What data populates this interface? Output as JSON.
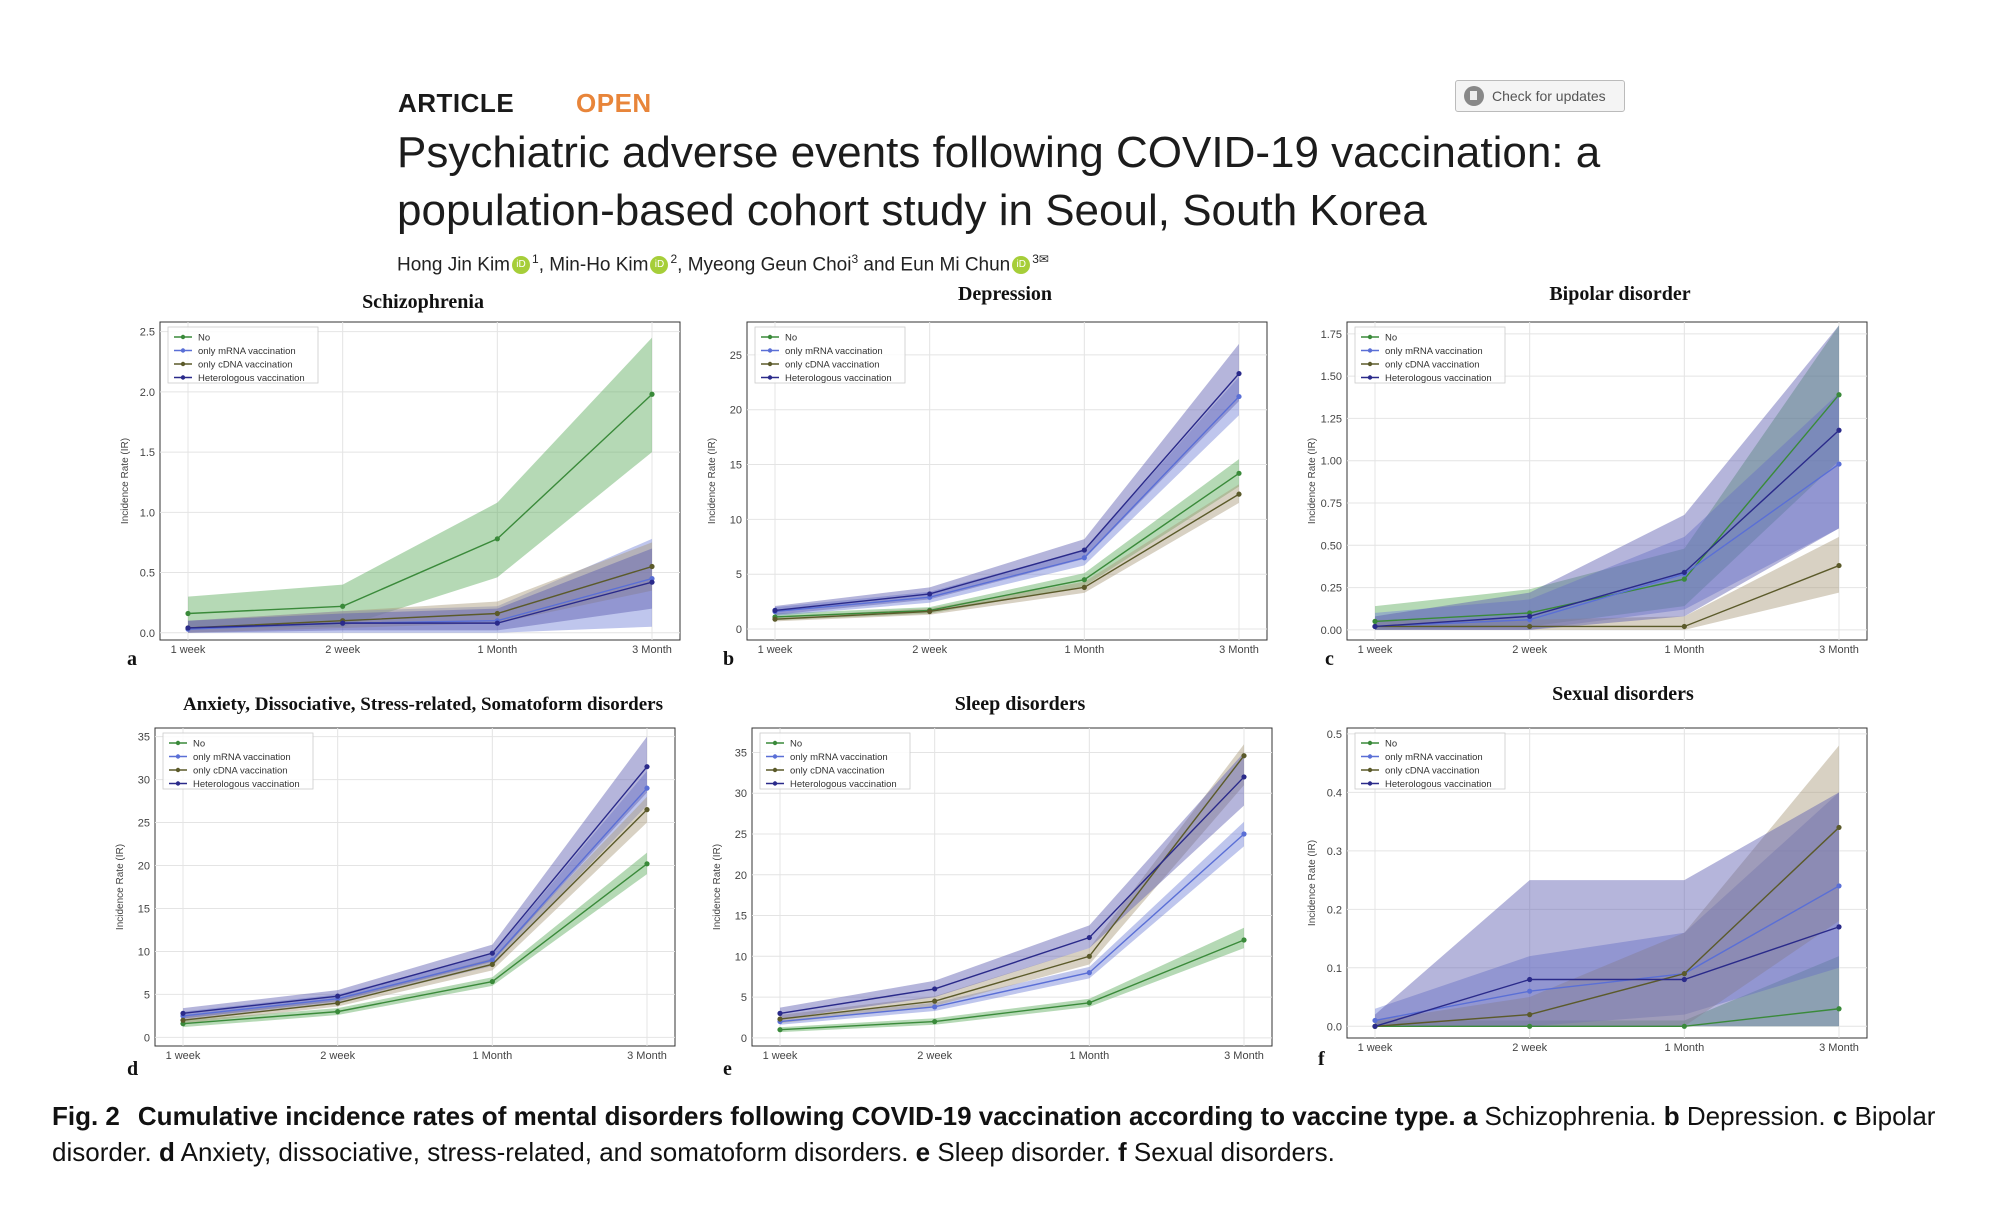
{
  "header": {
    "article_label": "ARTICLE",
    "open_label": "OPEN",
    "check_updates": "Check for updates",
    "title": "Psychiatric adverse events following COVID-19 vaccination: a population-based cohort study in Seoul, South Korea",
    "authors": [
      {
        "name": "Hong Jin Kim",
        "sup": "1",
        "orcid": true,
        "sep": ", "
      },
      {
        "name": "Min-Ho Kim",
        "sup": "2",
        "orcid": true,
        "sep": ", "
      },
      {
        "name": "Myeong Geun Choi",
        "sup": "3",
        "orcid": false,
        "sep": " and "
      },
      {
        "name": "Eun Mi Chun",
        "sup": "3✉",
        "orcid": true,
        "sep": ""
      }
    ]
  },
  "colors": {
    "No": "#3a8a3a",
    "only mRNA vaccination": "#5a6fd6",
    "only cDNA vaccination": "#5b5a2a",
    "Heterologous vaccination": "#2a2a8a",
    "band_No": "#5aaa5a",
    "band_mRNA": "#7080d8",
    "band_cDNA": "#a89a7a",
    "band_Het": "#5a5ab0"
  },
  "chart_data": [
    {
      "type": "line",
      "panel": "a",
      "title": "Schizophrenia",
      "ylabel": "Incidence Rate (IR)",
      "x": [
        "1 week",
        "2 week",
        "1 Month",
        "3 Month"
      ],
      "ylim": [
        -0.06,
        2.58
      ],
      "yticks": [
        0.0,
        0.5,
        1.0,
        1.5,
        2.0,
        2.5
      ],
      "series": [
        {
          "name": "No",
          "values": [
            0.16,
            0.22,
            0.78,
            1.98
          ],
          "lower": [
            0.04,
            0.05,
            0.46,
            1.5
          ],
          "upper": [
            0.3,
            0.4,
            1.08,
            2.45
          ]
        },
        {
          "name": "only mRNA vaccination",
          "values": [
            0.03,
            0.08,
            0.1,
            0.45
          ],
          "lower": [
            0.0,
            0.0,
            0.0,
            0.05
          ],
          "upper": [
            0.1,
            0.18,
            0.22,
            0.78
          ]
        },
        {
          "name": "only cDNA vaccination",
          "values": [
            0.04,
            0.1,
            0.16,
            0.55
          ],
          "lower": [
            0.0,
            0.04,
            0.08,
            0.35
          ],
          "upper": [
            0.1,
            0.18,
            0.26,
            0.75
          ]
        },
        {
          "name": "Heterologous vaccination",
          "values": [
            0.04,
            0.08,
            0.08,
            0.42
          ],
          "lower": [
            0.0,
            0.02,
            0.02,
            0.2
          ],
          "upper": [
            0.1,
            0.16,
            0.2,
            0.7
          ]
        }
      ]
    },
    {
      "type": "line",
      "panel": "b",
      "title": "Depression",
      "ylabel": "Incidence Rate (IR)",
      "x": [
        "1 week",
        "2 week",
        "1 Month",
        "3 Month"
      ],
      "ylim": [
        -1.0,
        28.0
      ],
      "yticks": [
        0,
        5,
        10,
        15,
        20,
        25
      ],
      "series": [
        {
          "name": "No",
          "values": [
            1.1,
            1.7,
            4.5,
            14.2
          ],
          "lower": [
            0.8,
            1.4,
            3.9,
            13.0
          ],
          "upper": [
            1.4,
            2.0,
            5.1,
            15.5
          ]
        },
        {
          "name": "only mRNA vaccination",
          "values": [
            1.6,
            2.9,
            6.5,
            21.2
          ],
          "lower": [
            1.2,
            2.4,
            5.8,
            19.5
          ],
          "upper": [
            2.0,
            3.4,
            7.2,
            23.0
          ]
        },
        {
          "name": "only cDNA vaccination",
          "values": [
            0.9,
            1.6,
            3.8,
            12.3
          ],
          "lower": [
            0.7,
            1.3,
            3.3,
            11.5
          ],
          "upper": [
            1.1,
            1.9,
            4.3,
            13.2
          ]
        },
        {
          "name": "Heterologous vaccination",
          "values": [
            1.7,
            3.2,
            7.2,
            23.3
          ],
          "lower": [
            1.3,
            2.7,
            6.4,
            20.8
          ],
          "upper": [
            2.1,
            3.8,
            8.2,
            26.0
          ]
        }
      ]
    },
    {
      "type": "line",
      "panel": "c",
      "title": "Bipolar disorder",
      "ylabel": "Incidence Rate (IR)",
      "x": [
        "1 week",
        "2 week",
        "1 Month",
        "3 Month"
      ],
      "ylim": [
        -0.06,
        1.82
      ],
      "yticks": [
        0.0,
        0.25,
        0.5,
        0.75,
        1.0,
        1.25,
        1.5,
        1.75
      ],
      "series": [
        {
          "name": "No",
          "values": [
            0.05,
            0.1,
            0.3,
            1.39
          ],
          "lower": [
            0.0,
            0.02,
            0.14,
            1.0
          ],
          "upper": [
            0.14,
            0.24,
            0.48,
            1.8
          ]
        },
        {
          "name": "only mRNA vaccination",
          "values": [
            0.02,
            0.06,
            0.33,
            0.98
          ],
          "lower": [
            0.0,
            0.0,
            0.12,
            0.6
          ],
          "upper": [
            0.1,
            0.18,
            0.55,
            1.4
          ]
        },
        {
          "name": "only cDNA vaccination",
          "values": [
            0.02,
            0.02,
            0.02,
            0.38
          ],
          "lower": [
            0.0,
            0.0,
            0.0,
            0.22
          ],
          "upper": [
            0.06,
            0.06,
            0.08,
            0.55
          ]
        },
        {
          "name": "Heterologous vaccination",
          "values": [
            0.02,
            0.08,
            0.34,
            1.18
          ],
          "lower": [
            0.0,
            0.0,
            0.08,
            0.6
          ],
          "upper": [
            0.08,
            0.22,
            0.68,
            1.8
          ]
        }
      ]
    },
    {
      "type": "line",
      "panel": "d",
      "title": "Anxiety, Dissociative, Stress-related, Somatoform disorders",
      "ylabel": "Incidence Rate (IR)",
      "x": [
        "1 week",
        "2 week",
        "1 Month",
        "3 Month"
      ],
      "ylim": [
        -1.0,
        36.0
      ],
      "yticks": [
        0,
        5,
        10,
        15,
        20,
        25,
        30,
        35
      ],
      "series": [
        {
          "name": "No",
          "values": [
            1.6,
            3.0,
            6.5,
            20.2
          ],
          "lower": [
            1.2,
            2.6,
            6.0,
            19.0
          ],
          "upper": [
            2.0,
            3.4,
            7.0,
            21.5
          ]
        },
        {
          "name": "only mRNA vaccination",
          "values": [
            2.5,
            4.5,
            9.0,
            29.0
          ],
          "lower": [
            2.0,
            4.0,
            8.3,
            27.0
          ],
          "upper": [
            3.0,
            5.0,
            9.7,
            31.0
          ]
        },
        {
          "name": "only cDNA vaccination",
          "values": [
            2.0,
            4.0,
            8.5,
            26.5
          ],
          "lower": [
            1.6,
            3.6,
            7.8,
            25.0
          ],
          "upper": [
            2.4,
            4.4,
            9.2,
            28.0
          ]
        },
        {
          "name": "Heterologous vaccination",
          "values": [
            2.8,
            4.8,
            9.8,
            31.5
          ],
          "lower": [
            2.2,
            4.2,
            8.8,
            28.5
          ],
          "upper": [
            3.4,
            5.5,
            10.8,
            35.0
          ]
        }
      ]
    },
    {
      "type": "line",
      "panel": "e",
      "title": "Sleep disorders",
      "ylabel": "Incidence Rate (IR)",
      "x": [
        "1 week",
        "2 week",
        "1 Month",
        "3 Month"
      ],
      "ylim": [
        -1.0,
        38.0
      ],
      "yticks": [
        0,
        5,
        10,
        15,
        20,
        25,
        30,
        35
      ],
      "series": [
        {
          "name": "No",
          "values": [
            1.0,
            2.0,
            4.3,
            12.0
          ],
          "lower": [
            0.7,
            1.6,
            3.8,
            11.0
          ],
          "upper": [
            1.3,
            2.4,
            4.8,
            13.5
          ]
        },
        {
          "name": "only mRNA vaccination",
          "values": [
            2.0,
            3.8,
            8.0,
            25.0
          ],
          "lower": [
            1.6,
            3.3,
            7.3,
            23.5
          ],
          "upper": [
            2.4,
            4.3,
            8.7,
            26.5
          ]
        },
        {
          "name": "only cDNA vaccination",
          "values": [
            2.3,
            4.5,
            10.0,
            34.6
          ],
          "lower": [
            1.8,
            3.9,
            9.0,
            31.0
          ],
          "upper": [
            2.8,
            5.1,
            11.0,
            36.0
          ]
        },
        {
          "name": "Heterologous vaccination",
          "values": [
            3.0,
            6.0,
            12.3,
            32.0
          ],
          "lower": [
            2.3,
            5.0,
            11.0,
            28.5
          ],
          "upper": [
            3.7,
            7.0,
            13.8,
            35.0
          ]
        }
      ]
    },
    {
      "type": "line",
      "panel": "f",
      "title": "Sexual disorders",
      "ylabel": "Incidence Rate (IR)",
      "x": [
        "1 week",
        "2 week",
        "1 Month",
        "3 Month"
      ],
      "ylim": [
        -0.02,
        0.51
      ],
      "yticks": [
        0.0,
        0.1,
        0.2,
        0.3,
        0.4,
        0.5
      ],
      "series": [
        {
          "name": "No",
          "values": [
            0.0,
            0.0,
            0.0,
            0.03
          ],
          "lower": [
            0.0,
            0.0,
            0.0,
            0.0
          ],
          "upper": [
            0.01,
            0.01,
            0.01,
            0.12
          ]
        },
        {
          "name": "only mRNA vaccination",
          "values": [
            0.01,
            0.06,
            0.09,
            0.24
          ],
          "lower": [
            0.0,
            0.0,
            0.02,
            0.1
          ],
          "upper": [
            0.03,
            0.12,
            0.16,
            0.4
          ]
        },
        {
          "name": "only cDNA vaccination",
          "values": [
            0.0,
            0.02,
            0.09,
            0.34
          ],
          "lower": [
            0.0,
            0.0,
            0.0,
            0.18
          ],
          "upper": [
            0.01,
            0.05,
            0.16,
            0.48
          ]
        },
        {
          "name": "Heterologous vaccination",
          "values": [
            0.0,
            0.08,
            0.08,
            0.17
          ],
          "lower": [
            0.0,
            0.0,
            0.0,
            0.0
          ],
          "upper": [
            0.02,
            0.25,
            0.25,
            0.4
          ]
        }
      ]
    }
  ],
  "caption": {
    "fig": "Fig. 2",
    "bold": "Cumulative incidence rates of mental disorders following COVID-19 vaccination according to vaccine type.",
    "parts": [
      {
        "k": "a",
        "t": "Schizophrenia."
      },
      {
        "k": "b",
        "t": "Depression."
      },
      {
        "k": "c",
        "t": "Bipolar disorder."
      },
      {
        "k": "d",
        "t": "Anxiety, dissociative, stress-related, and somatoform disorders."
      },
      {
        "k": "e",
        "t": "Sleep disorder."
      },
      {
        "k": "f",
        "t": "Sexual disorders."
      }
    ]
  }
}
